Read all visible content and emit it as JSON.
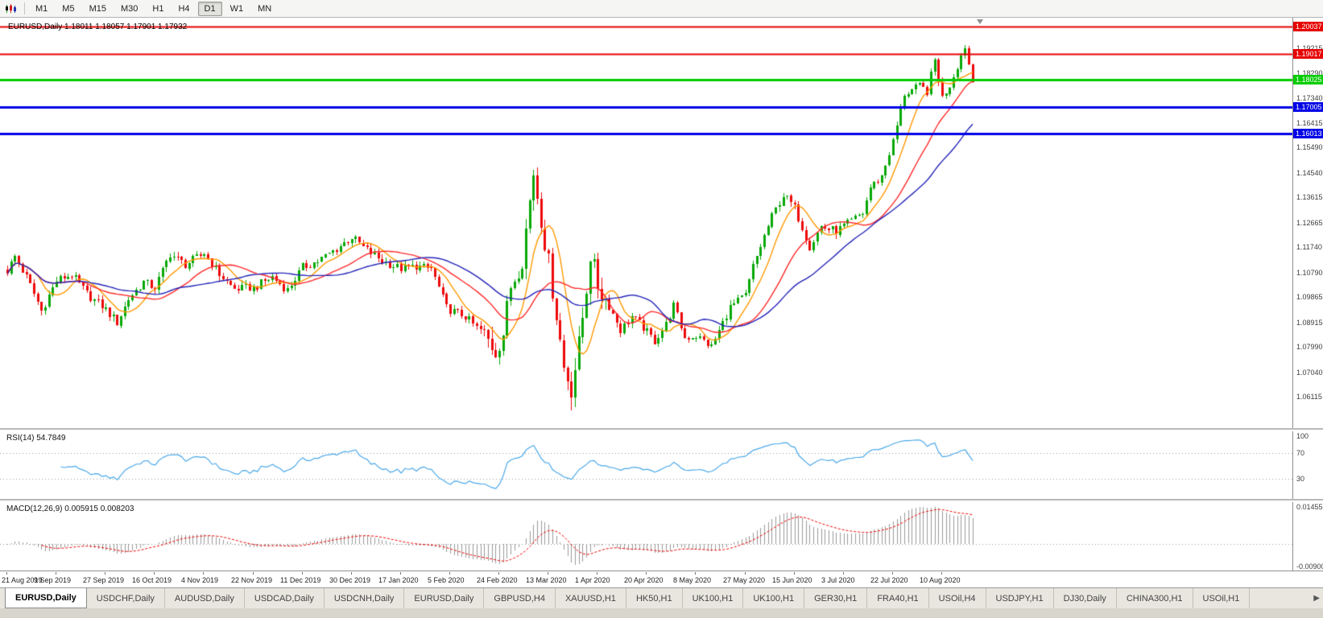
{
  "toolbar": {
    "timeframes": [
      "M1",
      "M5",
      "M15",
      "M30",
      "H1",
      "H4",
      "D1",
      "W1",
      "MN"
    ],
    "active_timeframe": "D1"
  },
  "chart": {
    "title": "EURUSD,Daily",
    "ohlc": "1.18011 1.18057 1.17901 1.17932"
  },
  "hlines": [
    {
      "price": 1.20037,
      "label": "1.20037",
      "color": "#E60000",
      "width": 2
    },
    {
      "price": 1.19017,
      "label": "1.19017",
      "color": "#E60000",
      "width": 2
    },
    {
      "price": 1.18025,
      "label": "1.18025",
      "color": "#00CC00",
      "width": 3
    },
    {
      "price": 1.17005,
      "label": "1.17005",
      "color": "#0000E6",
      "width": 3
    },
    {
      "price": 1.16013,
      "label": "1.16013",
      "color": "#0000E6",
      "width": 3
    }
  ],
  "price_axis": {
    "labels": [
      "1.19215",
      "1.18290",
      "1.17340",
      "1.16415",
      "1.15490",
      "1.14540",
      "1.13615",
      "1.12665",
      "1.11740",
      "1.10790",
      "1.09865",
      "1.08915",
      "1.07990",
      "1.07040",
      "1.06115"
    ]
  },
  "rsi": {
    "label": "RSI(14) 54.7849",
    "value": 54.7849,
    "levels": [
      "100",
      "70",
      "30"
    ]
  },
  "macd": {
    "label": "MACD(12,26,9) 0.005915 0.008203",
    "macd_value": 0.005915,
    "signal_value": 0.008203,
    "axis_top": "0.014556",
    "axis_bottom": "-0.009001"
  },
  "dates": [
    "21 Aug 2019",
    "9 Sep 2019",
    "27 Sep 2019",
    "16 Oct 2019",
    "4 Nov 2019",
    "22 Nov 2019",
    "11 Dec 2019",
    "30 Dec 2019",
    "17 Jan 2020",
    "5 Feb 2020",
    "24 Feb 2020",
    "13 Mar 2020",
    "1 Apr 2020",
    "20 Apr 2020",
    "8 May 2020",
    "27 May 2020",
    "15 Jun 2020",
    "3 Jul 2020",
    "22 Jul 2020",
    "10 Aug 2020"
  ],
  "tabs": [
    "EURUSD,Daily",
    "USDCHF,Daily",
    "AUDUSD,Daily",
    "USDCAD,Daily",
    "USDCNH,Daily",
    "EURUSD,Daily",
    "GBPUSD,H4",
    "XAUUSD,H1",
    "HK50,H1",
    "UK100,H1",
    "UK100,H1",
    "GER30,H1",
    "FRA40,H1",
    "USOil,H4",
    "USDJPY,H1",
    "DJ30,Daily",
    "CHINA300,H1",
    "USOil,H1"
  ],
  "active_tab": 0,
  "tab_scroll_icon": "▶",
  "chart_data": {
    "type": "candlestick",
    "symbol": "EURUSD",
    "timeframe": "Daily",
    "title": "EURUSD,Daily 1.18011 1.18057 1.17901 1.17932",
    "current_ohlc": {
      "open": 1.18011,
      "high": 1.18057,
      "low": 1.17901,
      "close": 1.17932
    },
    "ylim": [
      1.0524,
      1.2037
    ],
    "grid": false,
    "x_labels": [
      "21 Aug 2019",
      "9 Sep 2019",
      "27 Sep 2019",
      "16 Oct 2019",
      "4 Nov 2019",
      "22 Nov 2019",
      "11 Dec 2019",
      "30 Dec 2019",
      "17 Jan 2020",
      "5 Feb 2020",
      "24 Feb 2020",
      "13 Mar 2020",
      "1 Apr 2020",
      "20 Apr 2020",
      "8 May 2020",
      "27 May 2020",
      "15 Jun 2020",
      "3 Jul 2020",
      "22 Jul 2020",
      "10 Aug 2020"
    ],
    "candles_total": 256,
    "bars_per_label": 13,
    "anchors": [
      [
        0,
        1.1086
      ],
      [
        2,
        1.114
      ],
      [
        5,
        1.1062
      ],
      [
        9,
        1.0935
      ],
      [
        13,
        1.1049
      ],
      [
        17,
        1.1072
      ],
      [
        21,
        1.0998
      ],
      [
        26,
        1.094
      ],
      [
        29,
        1.089
      ],
      [
        32,
        1.098
      ],
      [
        36,
        1.1042
      ],
      [
        39,
        1.1022
      ],
      [
        43,
        1.115
      ],
      [
        47,
        1.1108
      ],
      [
        52,
        1.1152
      ],
      [
        56,
        1.1072
      ],
      [
        60,
        1.1017
      ],
      [
        65,
        1.1021
      ],
      [
        70,
        1.1062
      ],
      [
        74,
        1.1012
      ],
      [
        78,
        1.11
      ],
      [
        82,
        1.1122
      ],
      [
        86,
        1.1158
      ],
      [
        91,
        1.1212
      ],
      [
        95,
        1.1162
      ],
      [
        99,
        1.1122
      ],
      [
        104,
        1.1092
      ],
      [
        108,
        1.1102
      ],
      [
        112,
        1.1094
      ],
      [
        116,
        1.0946
      ],
      [
        121,
        1.0912
      ],
      [
        126,
        1.0842
      ],
      [
        129,
        1.0786
      ],
      [
        131,
        1.0852
      ],
      [
        133,
        1.1027
      ],
      [
        136,
        1.1132
      ],
      [
        139,
        1.1456
      ],
      [
        141,
        1.1282
      ],
      [
        143,
        1.1112
      ],
      [
        145,
        1.0922
      ],
      [
        147,
        1.0722
      ],
      [
        149,
        1.0642
      ],
      [
        151,
        1.0802
      ],
      [
        153,
        1.1022
      ],
      [
        154,
        1.1147
      ],
      [
        156,
        1.1031
      ],
      [
        159,
        1.0952
      ],
      [
        162,
        1.0862
      ],
      [
        165,
        1.0912
      ],
      [
        168,
        1.0872
      ],
      [
        171,
        1.0822
      ],
      [
        174,
        1.0882
      ],
      [
        176,
        1.0956
      ],
      [
        179,
        1.0834
      ],
      [
        182,
        1.0842
      ],
      [
        186,
        1.08
      ],
      [
        191,
        1.0949
      ],
      [
        195,
        1.0992
      ],
      [
        197,
        1.1101
      ],
      [
        202,
        1.129
      ],
      [
        205,
        1.137
      ],
      [
        208,
        1.1322
      ],
      [
        212,
        1.1177
      ],
      [
        215,
        1.1252
      ],
      [
        219,
        1.1234
      ],
      [
        223,
        1.1272
      ],
      [
        226,
        1.1302
      ],
      [
        228,
        1.1398
      ],
      [
        231,
        1.1442
      ],
      [
        234,
        1.157
      ],
      [
        237,
        1.175
      ],
      [
        241,
        1.1778
      ],
      [
        243,
        1.1762
      ],
      [
        245,
        1.1876
      ],
      [
        247,
        1.1736
      ],
      [
        249,
        1.1785
      ],
      [
        253,
        1.193
      ],
      [
        255,
        1.1793
      ]
    ],
    "noise": {
      "base": 0.0016,
      "high": 0.0042,
      "high_range": [
        125,
        158
      ]
    },
    "mas": [
      {
        "period": 8,
        "type": "sma",
        "color": "#FF9900"
      },
      {
        "period": 20,
        "type": "sma",
        "color": "#FF2A2A"
      },
      {
        "period": 34,
        "type": "sma",
        "color": "#2424B8"
      }
    ],
    "indicators": {
      "rsi_period": 14,
      "rsi_current": 54.7849,
      "macd_params": [
        12,
        26,
        9
      ],
      "macd_current": 0.005915,
      "macd_signal_current": 0.008203,
      "macd_axis": [
        -0.009001,
        0.014556
      ]
    },
    "style": {
      "up": "#07A807",
      "down": "#ED0A0A",
      "rsi_line": "#4AA8E8",
      "macd_hist": "#9A9A9A",
      "macd_signal": "#F00000"
    }
  }
}
